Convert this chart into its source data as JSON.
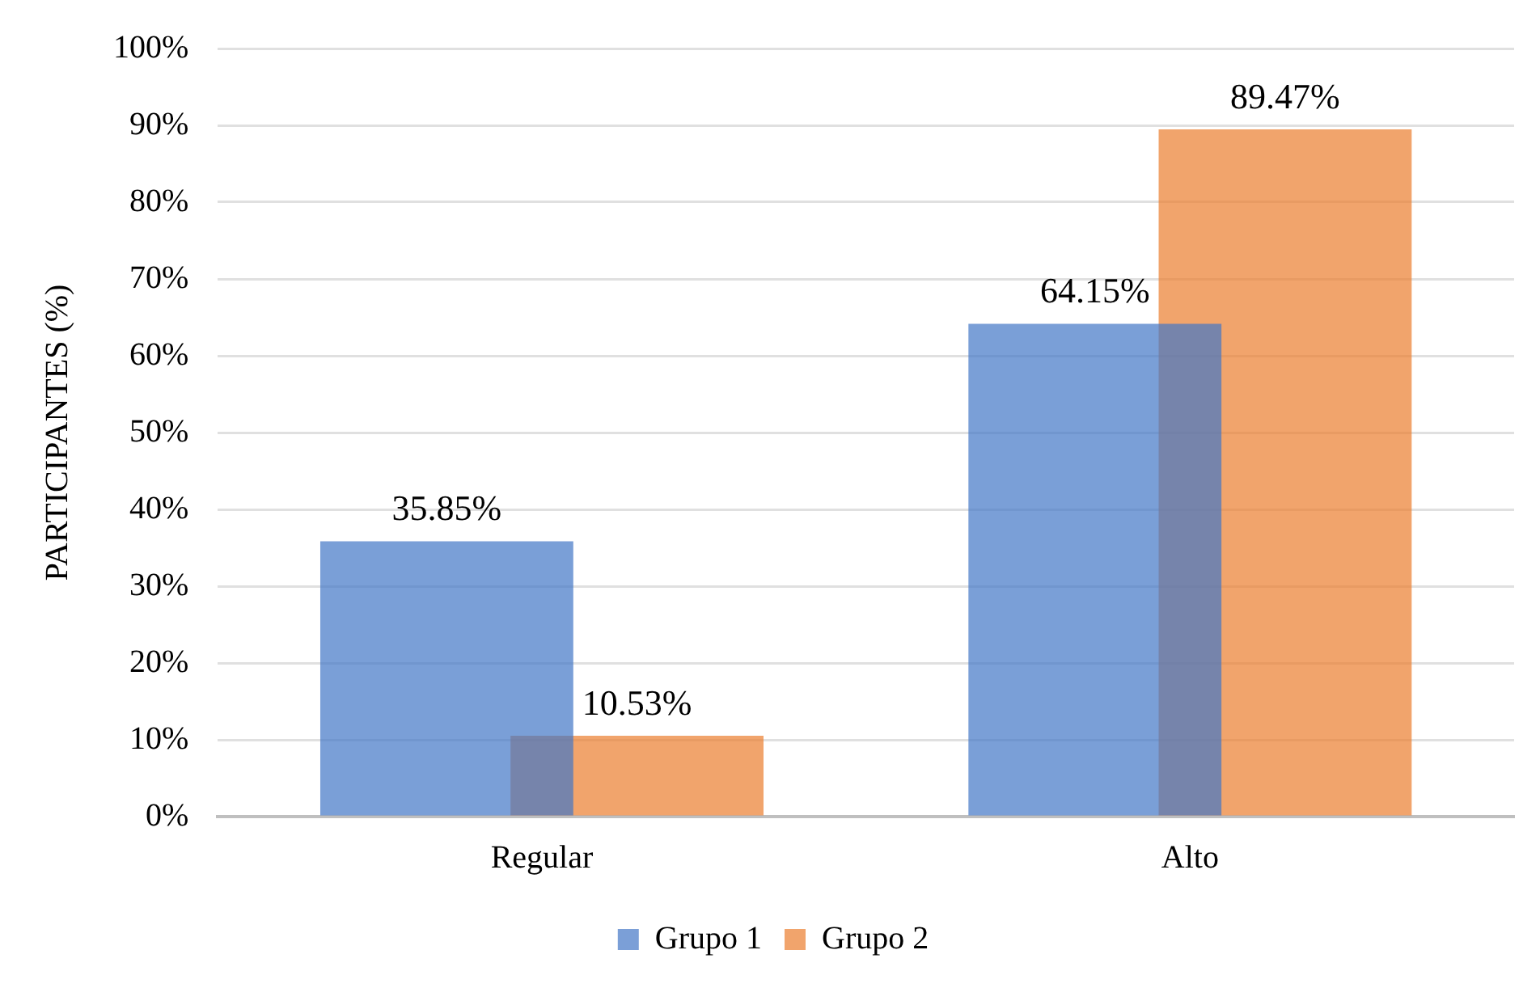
{
  "chart_data": {
    "type": "bar",
    "ylabel": "PARTICIPANTES (%)",
    "categories": [
      "Regular",
      "Alto"
    ],
    "series": [
      {
        "name": "Grupo 1",
        "color": "#7b9fd7",
        "values": [
          35.85,
          64.15
        ],
        "value_labels": [
          "35.85%",
          "64.15%"
        ]
      },
      {
        "name": "Grupo 2",
        "color": "#f1a46c",
        "values": [
          10.53,
          89.47
        ],
        "value_labels": [
          "10.53%",
          "89.47%"
        ]
      }
    ],
    "ylim": [
      0,
      100
    ],
    "yticks": [
      {
        "value": 0,
        "label": "0%"
      },
      {
        "value": 10,
        "label": "10%"
      },
      {
        "value": 20,
        "label": "20%"
      },
      {
        "value": 30,
        "label": "30%"
      },
      {
        "value": 40,
        "label": "40%"
      },
      {
        "value": 50,
        "label": "50%"
      },
      {
        "value": 60,
        "label": "60%"
      },
      {
        "value": 70,
        "label": "70%"
      },
      {
        "value": 80,
        "label": "80%"
      },
      {
        "value": 90,
        "label": "90%"
      },
      {
        "value": 100,
        "label": "100%"
      }
    ],
    "grid": "y",
    "legend": "bottom"
  }
}
